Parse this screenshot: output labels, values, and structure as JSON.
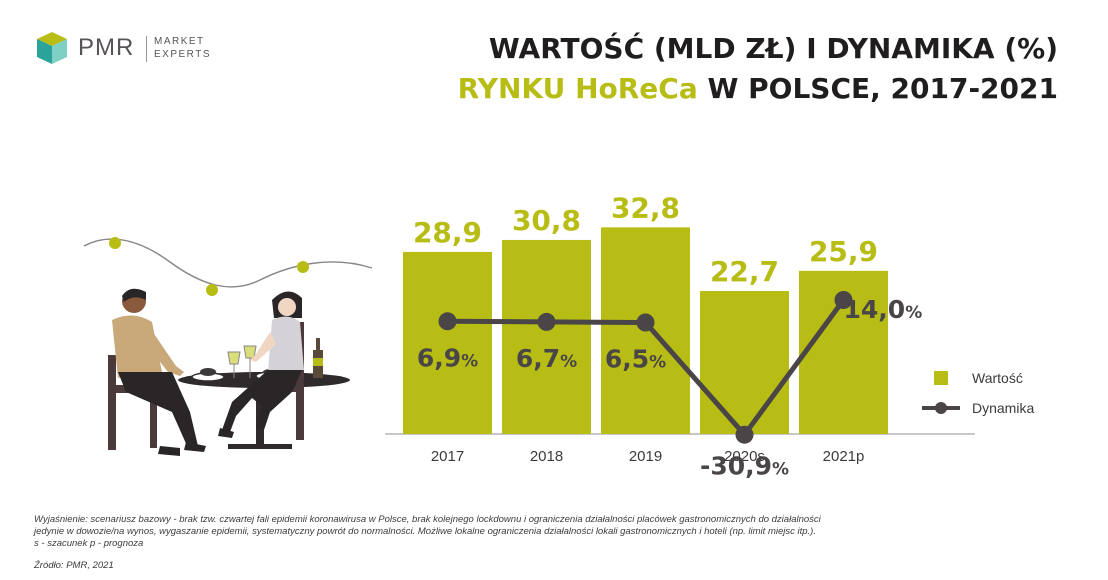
{
  "logo": {
    "name": "PMR",
    "tagline_1": "MARKET",
    "tagline_2": "EXPERTS"
  },
  "title": {
    "line1": "WARTOŚĆ (MLD ZŁ) I DYNAMIKA (%)",
    "line2_accent": "RYNKU HoReCa",
    "line2_rest": " W POLSCE, 2017-2021"
  },
  "colors": {
    "bar": "#b7bd14",
    "line": "#4a4547",
    "text": "#3d3a3b",
    "axis": "#c8c8c8"
  },
  "chart_data": {
    "type": "bar",
    "categories": [
      "2017",
      "2018",
      "2019",
      "2020s",
      "2021p"
    ],
    "series": [
      {
        "name": "Wartość",
        "type": "bar",
        "values": [
          28.9,
          30.8,
          32.8,
          22.7,
          25.9
        ],
        "labels": [
          "28,9",
          "30,8",
          "32,8",
          "22,7",
          "25,9"
        ]
      },
      {
        "name": "Dynamika",
        "type": "line",
        "values": [
          6.9,
          6.7,
          6.5,
          -30.9,
          14.0
        ],
        "labels": [
          "6,9",
          "6,7",
          "6,5",
          "-30,9",
          "14,0"
        ],
        "unit": "%"
      }
    ],
    "legend": {
      "position": "right",
      "items": [
        "Wartość",
        "Dynamika"
      ]
    },
    "grid": false
  },
  "footnote": {
    "line1": "Wyjaśnienie: scenariusz bazowy - brak tzw. czwartej fali epidemii koronawirusa w Polsce, brak kolejnego lockdownu i ograniczenia działalności placówek gastronomicznych do działalności",
    "line2": "jedynie w dowozie/na wynos, wygaszanie epidemii, systematyczny powrót do normalności. Możliwe lokalne ograniczenia działalności lokali gastronomicznych i hoteli (np. limit miejsc itp.).",
    "line3": "s - szacunek   p - prognoza"
  },
  "source": "Źródło: PMR, 2021"
}
